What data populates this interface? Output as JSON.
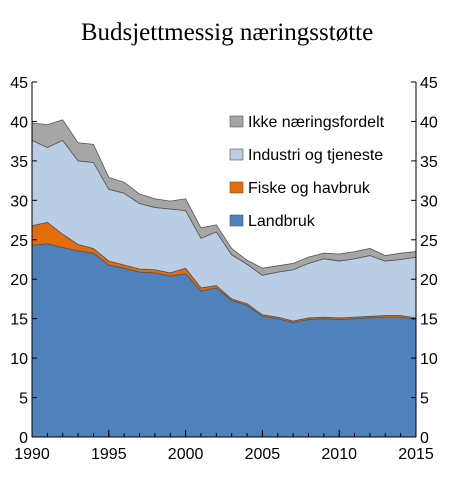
{
  "chart_data": {
    "type": "area",
    "stacked": true,
    "title": "Budsjettmessig næringsstøtte",
    "x": [
      1990,
      1991,
      1992,
      1993,
      1994,
      1995,
      1996,
      1997,
      1998,
      1999,
      2000,
      2001,
      2002,
      2003,
      2004,
      2005,
      2006,
      2007,
      2008,
      2009,
      2010,
      2011,
      2012,
      2013,
      2014,
      2015
    ],
    "xlim": [
      1990,
      2015
    ],
    "xticks": [
      "1990",
      "1995",
      "2000",
      "2005",
      "2010",
      "2015"
    ],
    "ylim": [
      0,
      45
    ],
    "yticks": [
      "0",
      "5",
      "10",
      "15",
      "20",
      "25",
      "30",
      "35",
      "40",
      "45"
    ],
    "legend_position": "upper-right",
    "grid": false,
    "series": [
      {
        "name": "Landbruk",
        "color": "#4f81bd",
        "values": [
          24.3,
          24.5,
          24.0,
          23.6,
          23.3,
          21.8,
          21.4,
          20.9,
          20.8,
          20.4,
          20.7,
          18.5,
          18.9,
          17.3,
          16.7,
          15.3,
          15.0,
          14.5,
          14.9,
          15.0,
          14.9,
          15.0,
          15.1,
          15.2,
          15.2,
          14.9
        ]
      },
      {
        "name": "Fiske og havbruk",
        "color": "#e46c0a",
        "values": [
          2.5,
          2.7,
          1.7,
          0.8,
          0.6,
          0.5,
          0.4,
          0.4,
          0.4,
          0.4,
          0.7,
          0.4,
          0.3,
          0.2,
          0.2,
          0.2,
          0.2,
          0.2,
          0.2,
          0.2,
          0.2,
          0.2,
          0.2,
          0.2,
          0.2,
          0.2
        ]
      },
      {
        "name": "Industri og tjeneste",
        "color": "#b9cde5",
        "values": [
          10.8,
          9.5,
          11.9,
          10.6,
          10.9,
          9.1,
          9.1,
          8.3,
          7.9,
          8.1,
          7.3,
          6.3,
          6.8,
          5.6,
          5.0,
          5.0,
          5.7,
          6.5,
          6.9,
          7.4,
          7.2,
          7.4,
          7.7,
          6.9,
          7.1,
          7.7
        ]
      },
      {
        "name": "Ikke næringsfordelt",
        "color": "#a6a6a6",
        "values": [
          2.2,
          2.9,
          2.6,
          2.3,
          2.3,
          1.5,
          1.4,
          1.2,
          1.1,
          1.0,
          1.5,
          1.3,
          0.9,
          0.8,
          0.5,
          0.9,
          0.8,
          0.8,
          0.8,
          0.7,
          0.9,
          0.9,
          0.9,
          0.7,
          0.8,
          0.7
        ]
      }
    ],
    "legend_order": [
      "Ikke næringsfordelt",
      "Industri og tjeneste",
      "Fiske og havbruk",
      "Landbruk"
    ]
  }
}
